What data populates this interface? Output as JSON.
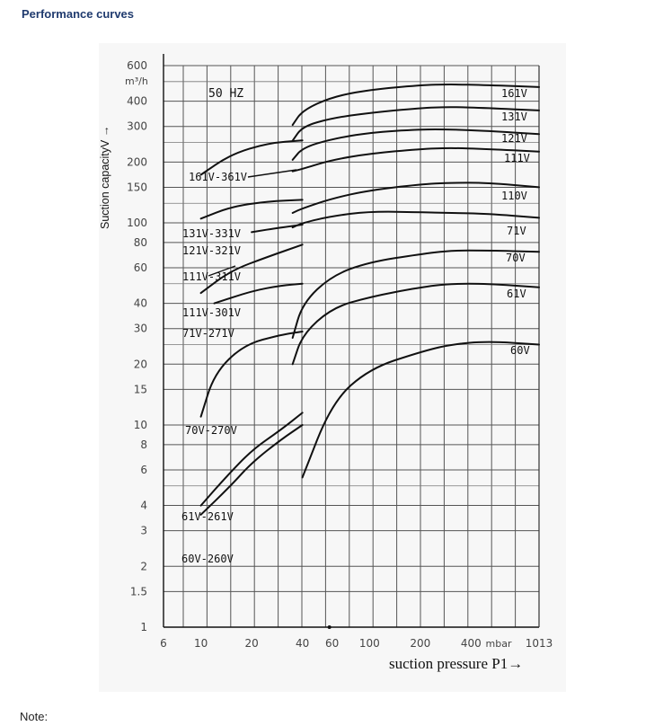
{
  "page": {
    "heading": "Performance curves",
    "note": "Note:"
  },
  "chart_data": {
    "type": "line",
    "title": "",
    "annotation": "50 HZ",
    "ylabel": "Suction capacityV →",
    "y_unit": "m³/h",
    "xlabel": "suction pressure P1→",
    "x_unit": "mbar",
    "x_scale": "log",
    "y_scale": "log",
    "xlim": [
      6,
      1013
    ],
    "ylim": [
      1,
      600
    ],
    "grid": true,
    "x_ticks": [
      "6",
      "10",
      "20",
      "40",
      "60",
      "100",
      "200",
      "400",
      "mbar",
      "1013"
    ],
    "y_ticks": [
      "600",
      "400",
      "300",
      "200",
      "150",
      "100",
      "80",
      "60",
      "40",
      "30",
      "20",
      "15",
      "10",
      "8",
      "6",
      "4",
      "3",
      "2",
      "1.5",
      "1"
    ],
    "series": [
      {
        "name": "161V",
        "points": [
          [
            35,
            305
          ],
          [
            40,
            360
          ],
          [
            60,
            420
          ],
          [
            100,
            455
          ],
          [
            200,
            480
          ],
          [
            300,
            485
          ],
          [
            500,
            480
          ],
          [
            1013,
            470
          ]
        ]
      },
      {
        "name": "131V",
        "points": [
          [
            35,
            255
          ],
          [
            40,
            300
          ],
          [
            60,
            330
          ],
          [
            100,
            350
          ],
          [
            200,
            370
          ],
          [
            300,
            375
          ],
          [
            500,
            370
          ],
          [
            1013,
            360
          ]
        ]
      },
      {
        "name": "121V",
        "points": [
          [
            35,
            205
          ],
          [
            40,
            235
          ],
          [
            60,
            260
          ],
          [
            100,
            280
          ],
          [
            200,
            290
          ],
          [
            300,
            290
          ],
          [
            500,
            285
          ],
          [
            1013,
            275
          ]
        ]
      },
      {
        "name": "111V",
        "points": [
          [
            35,
            180
          ],
          [
            40,
            185
          ],
          [
            60,
            205
          ],
          [
            100,
            220
          ],
          [
            200,
            232
          ],
          [
            300,
            235
          ],
          [
            500,
            232
          ],
          [
            1013,
            225
          ]
        ]
      },
      {
        "name": "110V",
        "points": [
          [
            35,
            112
          ],
          [
            40,
            118
          ],
          [
            60,
            132
          ],
          [
            100,
            145
          ],
          [
            200,
            155
          ],
          [
            300,
            158
          ],
          [
            500,
            158
          ],
          [
            1013,
            150
          ]
        ]
      },
      {
        "name": "71V",
        "points": [
          [
            35,
            95
          ],
          [
            40,
            100
          ],
          [
            60,
            108
          ],
          [
            100,
            114
          ],
          [
            200,
            113
          ],
          [
            300,
            112
          ],
          [
            500,
            111
          ],
          [
            1013,
            106
          ]
        ]
      },
      {
        "name": "70V",
        "points": [
          [
            35,
            27
          ],
          [
            40,
            40
          ],
          [
            60,
            55
          ],
          [
            100,
            64
          ],
          [
            200,
            70
          ],
          [
            300,
            73
          ],
          [
            500,
            73
          ],
          [
            1013,
            72
          ]
        ]
      },
      {
        "name": "61V",
        "points": [
          [
            35,
            20
          ],
          [
            40,
            28
          ],
          [
            60,
            38
          ],
          [
            100,
            43
          ],
          [
            200,
            48
          ],
          [
            300,
            50
          ],
          [
            500,
            50
          ],
          [
            1013,
            48
          ]
        ]
      },
      {
        "name": "60V",
        "points": [
          [
            40,
            5.5
          ],
          [
            60,
            13
          ],
          [
            100,
            19
          ],
          [
            200,
            23
          ],
          [
            300,
            25
          ],
          [
            500,
            26
          ],
          [
            1013,
            25
          ]
        ]
      },
      {
        "name": "161V-361V",
        "points": [
          [
            10,
            173
          ],
          [
            15,
            218
          ],
          [
            25,
            248
          ],
          [
            40,
            256
          ]
        ]
      },
      {
        "name": "131V-331V",
        "points": [
          [
            10,
            105
          ],
          [
            15,
            120
          ],
          [
            25,
            128
          ],
          [
            40,
            130
          ]
        ]
      },
      {
        "name": "121V-321V",
        "points": [
          [
            20,
            90
          ],
          [
            30,
            95
          ],
          [
            40,
            98
          ]
        ]
      },
      {
        "name": "111V-311V",
        "points": [
          [
            10,
            45
          ],
          [
            15,
            58
          ],
          [
            25,
            68
          ],
          [
            40,
            78
          ]
        ]
      },
      {
        "name": "111V-301V",
        "points": [
          [
            12,
            40
          ],
          [
            20,
            46
          ],
          [
            30,
            49
          ],
          [
            40,
            50
          ]
        ]
      },
      {
        "name": "71V-271V",
        "points": [
          [
            10,
            11
          ],
          [
            12,
            18
          ],
          [
            18,
            25
          ],
          [
            30,
            28
          ],
          [
            40,
            29
          ]
        ]
      },
      {
        "name": "70V-270V",
        "points": [
          [
            10,
            4
          ],
          [
            14,
            5.5
          ],
          [
            20,
            7.5
          ],
          [
            30,
            9.5
          ],
          [
            40,
            11.5
          ]
        ]
      },
      {
        "name": "61V-261V",
        "points": [
          [
            10,
            3.6
          ],
          [
            15,
            5
          ],
          [
            20,
            6.5
          ],
          [
            30,
            8.5
          ],
          [
            40,
            10
          ]
        ]
      }
    ],
    "labels": [
      {
        "text": "161V",
        "series": "161V"
      },
      {
        "text": "131V",
        "series": "131V"
      },
      {
        "text": "121V",
        "series": "121V"
      },
      {
        "text": "111V",
        "series": "111V"
      },
      {
        "text": "110V",
        "series": "110V"
      },
      {
        "text": "71V",
        "series": "71V"
      },
      {
        "text": "70V",
        "series": "70V"
      },
      {
        "text": "61V",
        "series": "61V"
      },
      {
        "text": "60V",
        "series": "60V"
      },
      {
        "text": "161V-361V"
      },
      {
        "text": "131V-331V"
      },
      {
        "text": "121V-321V"
      },
      {
        "text": "111V-311V"
      },
      {
        "text": "111V-301V"
      },
      {
        "text": "71V-271V"
      },
      {
        "text": "70V-270V"
      },
      {
        "text": "61V-261V"
      },
      {
        "text": "60V-260V"
      }
    ]
  }
}
